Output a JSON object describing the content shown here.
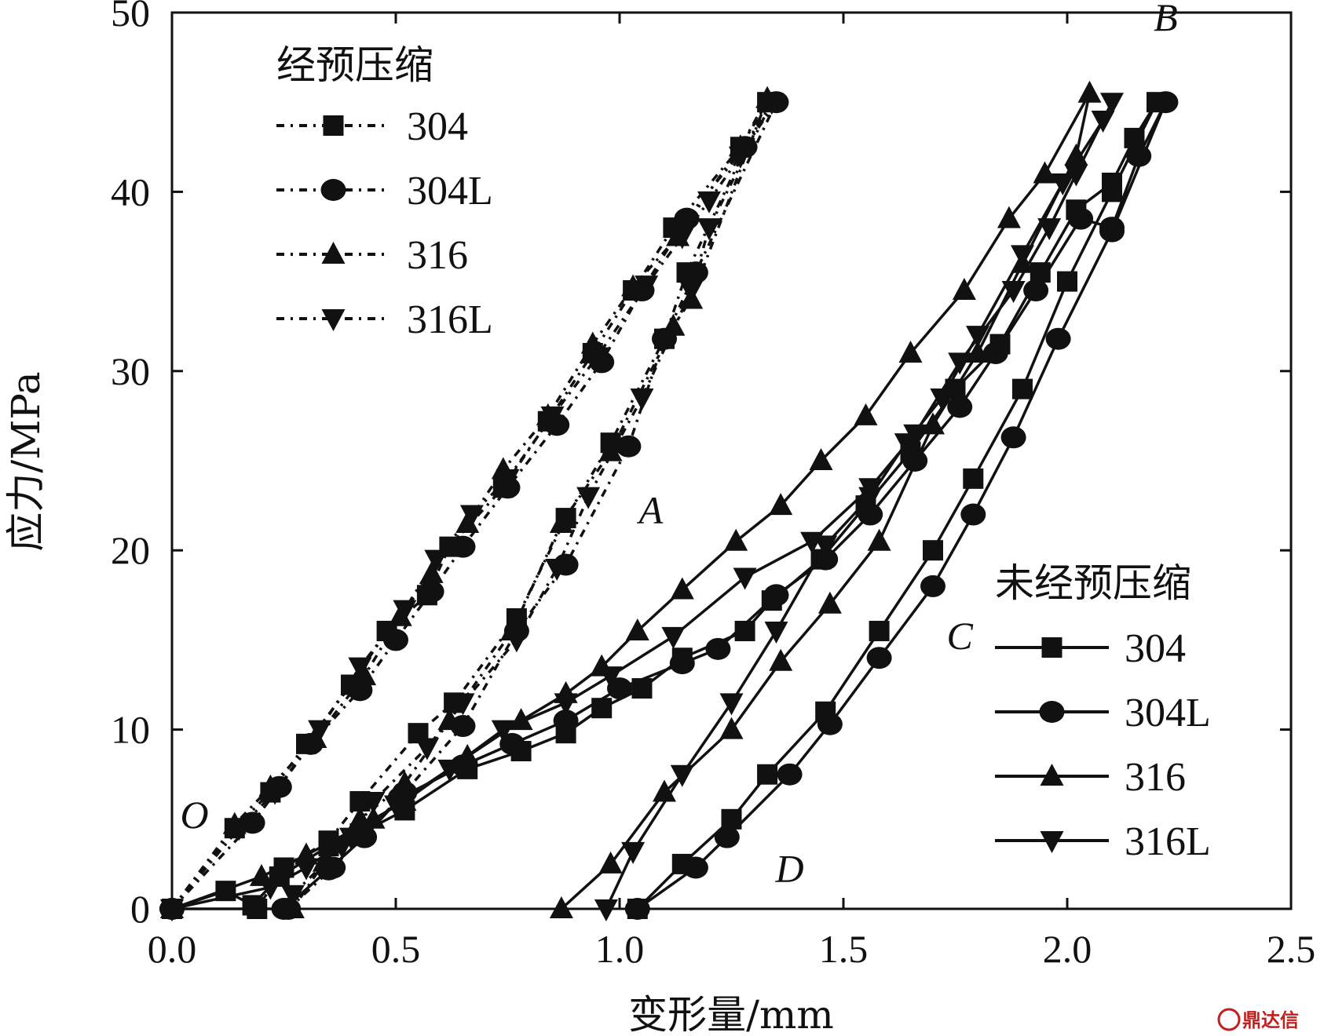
{
  "chart_data": {
    "type": "line",
    "xlabel": "变形量/mm",
    "ylabel": "应力/MPa",
    "xlim": [
      0,
      2.5
    ],
    "ylim": [
      0,
      50
    ],
    "xticks": [
      "0.0",
      "0.5",
      "1.0",
      "1.5",
      "2.0",
      "2.5"
    ],
    "yticks": [
      "0",
      "10",
      "20",
      "30",
      "40",
      "50"
    ],
    "grid": false,
    "legends": [
      {
        "title": "经预压缩",
        "placement": "top-left",
        "line_style": "dashed",
        "entries": [
          "304",
          "304L",
          "316",
          "316L"
        ]
      },
      {
        "title": "未经预压缩",
        "placement": "bottom-right",
        "line_style": "solid",
        "entries": [
          "304",
          "304L",
          "316",
          "316L"
        ]
      }
    ],
    "annotations": [
      {
        "text": "O",
        "x": 0.05,
        "y": 4.5
      },
      {
        "text": "A",
        "x": 1.07,
        "y": 21.5
      },
      {
        "text": "B",
        "x": 2.22,
        "y": 49
      },
      {
        "text": "C",
        "x": 1.76,
        "y": 14.5
      },
      {
        "text": "D",
        "x": 1.38,
        "y": 1.5
      }
    ],
    "series": [
      {
        "name": "304",
        "group": "经预压缩",
        "marker": "square",
        "line_style": "dashed",
        "points": [
          [
            0,
            0
          ],
          [
            0.14,
            4.5
          ],
          [
            0.22,
            6.5
          ],
          [
            0.3,
            9.2
          ],
          [
            0.4,
            12.5
          ],
          [
            0.48,
            15.5
          ],
          [
            0.57,
            17.5
          ],
          [
            0.62,
            20.2
          ],
          [
            0.74,
            23.5
          ],
          [
            0.84,
            27.2
          ],
          [
            0.94,
            31
          ],
          [
            1.03,
            34.5
          ],
          [
            1.12,
            38
          ],
          [
            1.27,
            42.5
          ],
          [
            1.33,
            45
          ],
          [
            1.15,
            35.5
          ],
          [
            1.1,
            31.8
          ],
          [
            0.98,
            26
          ],
          [
            0.88,
            21.8
          ],
          [
            0.77,
            16.2
          ],
          [
            0.63,
            11.5
          ],
          [
            0.55,
            9.8
          ],
          [
            0.42,
            6
          ],
          [
            0.35,
            3.8
          ],
          [
            0.25,
            2.3
          ],
          [
            0.19,
            0
          ]
        ]
      },
      {
        "name": "304L",
        "group": "经预压缩",
        "marker": "circle",
        "line_style": "dashed",
        "points": [
          [
            0,
            0
          ],
          [
            0.18,
            4.8
          ],
          [
            0.24,
            6.8
          ],
          [
            0.31,
            9.2
          ],
          [
            0.42,
            12.2
          ],
          [
            0.5,
            15
          ],
          [
            0.58,
            17.7
          ],
          [
            0.65,
            20.2
          ],
          [
            0.75,
            23.5
          ],
          [
            0.86,
            27
          ],
          [
            0.96,
            30.5
          ],
          [
            1.05,
            34.5
          ],
          [
            1.15,
            38.5
          ],
          [
            1.28,
            42.5
          ],
          [
            1.35,
            45
          ],
          [
            1.17,
            35.5
          ],
          [
            1.1,
            31.8
          ],
          [
            1.02,
            25.8
          ],
          [
            0.88,
            19.2
          ],
          [
            0.77,
            15.5
          ],
          [
            0.65,
            10.2
          ],
          [
            0.52,
            6.5
          ],
          [
            0.36,
            2.3
          ],
          [
            0.26,
            0
          ]
        ]
      },
      {
        "name": "316",
        "group": "经预压缩",
        "marker": "triangle-up",
        "line_style": "dashed",
        "points": [
          [
            0,
            0
          ],
          [
            0.14,
            4.7
          ],
          [
            0.22,
            6.8
          ],
          [
            0.32,
            9.5
          ],
          [
            0.43,
            13
          ],
          [
            0.51,
            16.3
          ],
          [
            0.58,
            18.7
          ],
          [
            0.66,
            21.5
          ],
          [
            0.74,
            24.5
          ],
          [
            0.84,
            27.5
          ],
          [
            0.94,
            31.5
          ],
          [
            1.03,
            34.7
          ],
          [
            1.13,
            37.5
          ],
          [
            1.27,
            42.5
          ],
          [
            1.33,
            45.2
          ],
          [
            1.16,
            34
          ],
          [
            1.12,
            32.5
          ],
          [
            0.98,
            25.5
          ],
          [
            0.87,
            21.5
          ],
          [
            0.76,
            15.5
          ],
          [
            0.62,
            10.5
          ],
          [
            0.52,
            7
          ],
          [
            0.42,
            5
          ],
          [
            0.34,
            2.6
          ],
          [
            0.27,
            0
          ]
        ]
      },
      {
        "name": "316L",
        "group": "经预压缩",
        "marker": "triangle-down",
        "line_style": "dashed",
        "points": [
          [
            0,
            0
          ],
          [
            0.15,
            4.5
          ],
          [
            0.23,
            6.5
          ],
          [
            0.33,
            10
          ],
          [
            0.42,
            13.5
          ],
          [
            0.52,
            16.7
          ],
          [
            0.59,
            19.5
          ],
          [
            0.67,
            22
          ],
          [
            0.75,
            24
          ],
          [
            0.85,
            27.5
          ],
          [
            0.95,
            30.8
          ],
          [
            1.06,
            34.8
          ],
          [
            1.14,
            37.5
          ],
          [
            1.2,
            39.5
          ],
          [
            1.27,
            42
          ],
          [
            1.34,
            45
          ],
          [
            1.2,
            38
          ],
          [
            1.16,
            34.5
          ],
          [
            1.05,
            28.5
          ],
          [
            0.93,
            23
          ],
          [
            0.86,
            19
          ],
          [
            0.77,
            15
          ],
          [
            0.65,
            11.5
          ],
          [
            0.57,
            9
          ],
          [
            0.45,
            6
          ],
          [
            0.38,
            3.5
          ],
          [
            0.27,
            0.8
          ]
        ]
      },
      {
        "name": "304",
        "group": "未经预压缩",
        "marker": "square",
        "line_style": "solid",
        "points": [
          [
            0,
            0
          ],
          [
            0.12,
            1
          ],
          [
            0.18,
            0.2
          ],
          [
            0.24,
            1.8
          ],
          [
            0.35,
            3.5
          ],
          [
            0.42,
            4.2
          ],
          [
            0.52,
            5.5
          ],
          [
            0.66,
            7.8
          ],
          [
            0.78,
            8.8
          ],
          [
            0.88,
            9.8
          ],
          [
            0.96,
            11.2
          ],
          [
            1.05,
            12.3
          ],
          [
            1.14,
            14
          ],
          [
            1.28,
            15.5
          ],
          [
            1.34,
            17.2
          ],
          [
            1.45,
            19.5
          ],
          [
            1.55,
            22.5
          ],
          [
            1.65,
            25.5
          ],
          [
            1.75,
            29
          ],
          [
            1.85,
            31.5
          ],
          [
            1.94,
            35.5
          ],
          [
            2.02,
            39
          ],
          [
            2.1,
            40.5
          ],
          [
            2.15,
            43
          ],
          [
            2.2,
            45
          ],
          [
            2.1,
            40
          ],
          [
            2.0,
            35
          ],
          [
            1.9,
            29
          ],
          [
            1.79,
            24
          ],
          [
            1.7,
            20
          ],
          [
            1.58,
            15.5
          ],
          [
            1.46,
            11
          ],
          [
            1.33,
            7.5
          ],
          [
            1.25,
            5
          ],
          [
            1.14,
            2.5
          ],
          [
            1.04,
            0
          ]
        ]
      },
      {
        "name": "304L",
        "group": "未经预压缩",
        "marker": "circle",
        "line_style": "solid",
        "points": [
          [
            0,
            0
          ],
          [
            0.25,
            0
          ],
          [
            0.35,
            2.2
          ],
          [
            0.43,
            4
          ],
          [
            0.51,
            6.2
          ],
          [
            0.65,
            8
          ],
          [
            0.76,
            9.2
          ],
          [
            0.88,
            10.5
          ],
          [
            1.0,
            12.3
          ],
          [
            1.14,
            13.7
          ],
          [
            1.22,
            14.5
          ],
          [
            1.35,
            17.5
          ],
          [
            1.46,
            19.5
          ],
          [
            1.56,
            22
          ],
          [
            1.66,
            25
          ],
          [
            1.76,
            28
          ],
          [
            1.84,
            31
          ],
          [
            1.93,
            34.5
          ],
          [
            2.03,
            38.5
          ],
          [
            2.1,
            38
          ],
          [
            2.16,
            42
          ],
          [
            2.22,
            45
          ],
          [
            2.1,
            37.8
          ],
          [
            1.98,
            31.8
          ],
          [
            1.88,
            26.3
          ],
          [
            1.79,
            22
          ],
          [
            1.7,
            18
          ],
          [
            1.58,
            14
          ],
          [
            1.47,
            10.3
          ],
          [
            1.38,
            7.5
          ],
          [
            1.24,
            4
          ],
          [
            1.17,
            2.3
          ],
          [
            1.04,
            0
          ]
        ]
      },
      {
        "name": "316",
        "group": "未经预压缩",
        "marker": "triangle-up",
        "line_style": "solid",
        "points": [
          [
            0,
            0
          ],
          [
            0.2,
            1.8
          ],
          [
            0.3,
            3
          ],
          [
            0.45,
            5
          ],
          [
            0.52,
            6
          ],
          [
            0.66,
            8.5
          ],
          [
            0.78,
            10.5
          ],
          [
            0.88,
            12
          ],
          [
            0.96,
            13.5
          ],
          [
            1.04,
            15.5
          ],
          [
            1.14,
            17.8
          ],
          [
            1.26,
            20.5
          ],
          [
            1.36,
            22.5
          ],
          [
            1.45,
            25
          ],
          [
            1.55,
            27.5
          ],
          [
            1.65,
            31
          ],
          [
            1.77,
            34.5
          ],
          [
            1.87,
            38.5
          ],
          [
            1.95,
            41
          ],
          [
            2.05,
            45.5
          ],
          [
            2.02,
            42
          ],
          [
            1.9,
            36
          ],
          [
            1.8,
            31
          ],
          [
            1.7,
            27
          ],
          [
            1.58,
            20.5
          ],
          [
            1.47,
            17
          ],
          [
            1.36,
            13.8
          ],
          [
            1.25,
            10
          ],
          [
            1.1,
            6.5
          ],
          [
            0.98,
            2.5
          ],
          [
            0.87,
            0
          ]
        ]
      },
      {
        "name": "316L",
        "group": "未经预压缩",
        "marker": "triangle-down",
        "line_style": "solid",
        "points": [
          [
            0,
            0
          ],
          [
            0.22,
            1.2
          ],
          [
            0.3,
            2.3
          ],
          [
            0.4,
            4
          ],
          [
            0.5,
            5.8
          ],
          [
            0.62,
            7.8
          ],
          [
            0.74,
            10
          ],
          [
            0.88,
            11.5
          ],
          [
            0.98,
            13
          ],
          [
            1.12,
            15.2
          ],
          [
            1.28,
            18.5
          ],
          [
            1.43,
            20.5
          ],
          [
            1.56,
            23.5
          ],
          [
            1.66,
            26.5
          ],
          [
            1.76,
            30.5
          ],
          [
            1.88,
            34.5
          ],
          [
            1.96,
            38
          ],
          [
            2.02,
            41
          ],
          [
            2.1,
            45
          ],
          [
            2.08,
            44
          ],
          [
            1.99,
            40.5
          ],
          [
            1.9,
            36.5
          ],
          [
            1.8,
            32
          ],
          [
            1.72,
            28.5
          ],
          [
            1.64,
            26
          ],
          [
            1.56,
            23
          ],
          [
            1.46,
            20.3
          ],
          [
            1.35,
            15.5
          ],
          [
            1.25,
            11.5
          ],
          [
            1.14,
            7.5
          ],
          [
            1.03,
            3.2
          ],
          [
            0.97,
            0
          ]
        ]
      }
    ]
  },
  "watermark": {
    "text": "鼎达信",
    "color": "#c21f1f"
  }
}
